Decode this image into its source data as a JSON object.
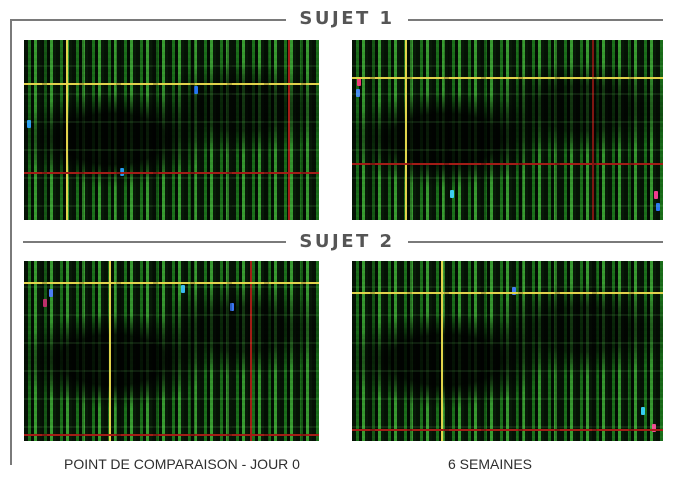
{
  "sections": {
    "subject1": "SUJET 1",
    "subject2": "SUJET 2"
  },
  "captions": {
    "baseline": "POINT DE COMPARAISON - JOUR 0",
    "weeks": "6 SEMAINES"
  },
  "colors": {
    "frame": "#7a7a7a",
    "heading": "#555555",
    "caption": "#2e2e2e",
    "yellow_guide": "#e6d64c",
    "red_guide": "#a51d16",
    "scan_green": "#3ead36"
  }
}
